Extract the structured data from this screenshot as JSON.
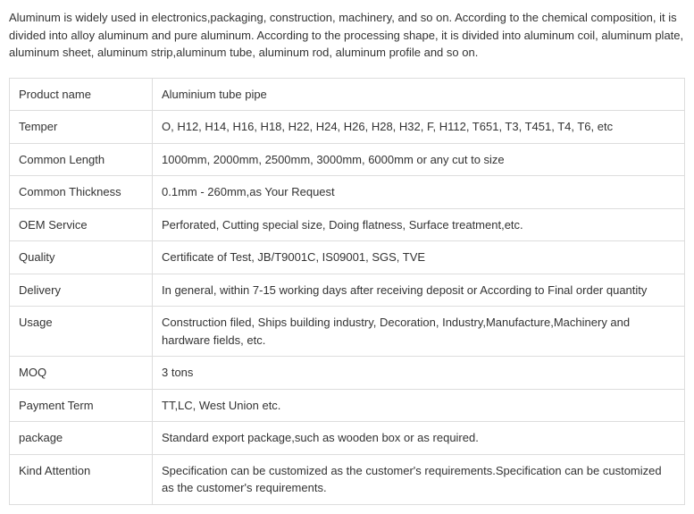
{
  "intro": "Aluminum is widely used in electronics,packaging, construction, machinery, and so on. According to the chemical composition, it is divided into alloy aluminum and pure aluminum. According to the processing shape, it is divided into aluminum coil, aluminum plate, aluminum sheet, aluminum strip,aluminum tube, aluminum rod, aluminum profile and so on.",
  "table": {
    "border_color": "#dddddd",
    "text_color": "#333333",
    "background_color": "#ffffff",
    "font_size": 13,
    "label_col_width": 160,
    "rows": [
      {
        "label": "Product name",
        "value": "Aluminium tube pipe"
      },
      {
        "label": "Temper",
        "value": "O, H12, H14, H16, H18, H22, H24, H26, H28, H32, F, H112, T651, T3, T451, T4, T6, etc"
      },
      {
        "label": "Common Length",
        "value": "1000mm, 2000mm, 2500mm, 3000mm, 6000mm or any cut to size"
      },
      {
        "label": "Common Thickness",
        "value": "0.1mm - 260mm,as Your Request"
      },
      {
        "label": "OEM Service",
        "value": "Perforated, Cutting special size, Doing flatness, Surface treatment,etc."
      },
      {
        "label": "Quality",
        "value": "Certificate of Test, JB/T9001C, IS09001, SGS, TVE"
      },
      {
        "label": "Delivery",
        "value": "In general, within 7-15 working days after receiving deposit or According to Final order quantity"
      },
      {
        "label": "Usage",
        "value": "Construction filed, Ships building industry, Decoration, Industry,Manufacture,Machinery and hardware fields, etc."
      },
      {
        "label": "MOQ",
        "value": "3 tons"
      },
      {
        "label": "Payment Term",
        "value": "TT,LC, West Union etc."
      },
      {
        "label": "package",
        "value": "Standard export package,such as wooden box or as required."
      },
      {
        "label": "Kind Attention",
        "value": "Specification can be customized as the customer's requirements.Specification can be customized as the customer's requirements."
      }
    ]
  }
}
